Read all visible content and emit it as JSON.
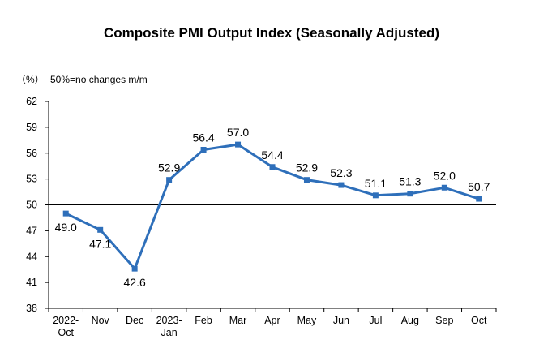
{
  "chart_data": {
    "type": "line",
    "title": "Composite PMI Output Index (Seasonally Adjusted)",
    "unit_label": "（%）",
    "note": "50%=no changes m/m",
    "categories": [
      [
        "2022-",
        "Oct"
      ],
      [
        "Nov"
      ],
      [
        "Dec"
      ],
      [
        "2023-",
        "Jan"
      ],
      [
        "Feb"
      ],
      [
        "Mar"
      ],
      [
        "Apr"
      ],
      [
        "May"
      ],
      [
        "Jun"
      ],
      [
        "Jul"
      ],
      [
        "Aug"
      ],
      [
        "Sep"
      ],
      [
        "Oct"
      ]
    ],
    "series": [
      {
        "values": [
          49.0,
          47.1,
          42.6,
          52.9,
          56.4,
          57.0,
          54.4,
          52.9,
          52.3,
          51.1,
          51.3,
          52.0,
          50.7
        ],
        "data_labels": [
          "49.0",
          "47.1",
          "42.6",
          "52.9",
          "56.4",
          "57.0",
          "54.4",
          "52.9",
          "52.3",
          "51.1",
          "51.3",
          "52.0",
          "50.7"
        ],
        "color": "#2e6fba"
      }
    ],
    "ylim": [
      38,
      62
    ],
    "yticks": [
      "62",
      "59",
      "56",
      "53",
      "50",
      "47",
      "44",
      "41",
      "38"
    ],
    "reference_line": 50,
    "grid": false,
    "legend": "none"
  }
}
